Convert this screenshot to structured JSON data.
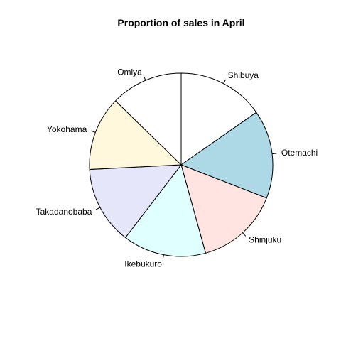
{
  "chart_data": {
    "type": "pie",
    "title": "Proportion of sales in April",
    "start_angle_deg": 90,
    "direction": "clockwise",
    "categories": [
      "Shibuya",
      "Otemachi",
      "Shinjuku",
      "Ikebukuro",
      "Takadanobaba",
      "Yokohama",
      "Omiya"
    ],
    "values": [
      0.153,
      0.156,
      0.148,
      0.147,
      0.138,
      0.131,
      0.127
    ],
    "colors": [
      "#FFFFFF",
      "#ADD8E6",
      "#FFE4E1",
      "#E0FFFF",
      "#E6E6FA",
      "#FFF8DC",
      "#FFFFFF"
    ]
  }
}
